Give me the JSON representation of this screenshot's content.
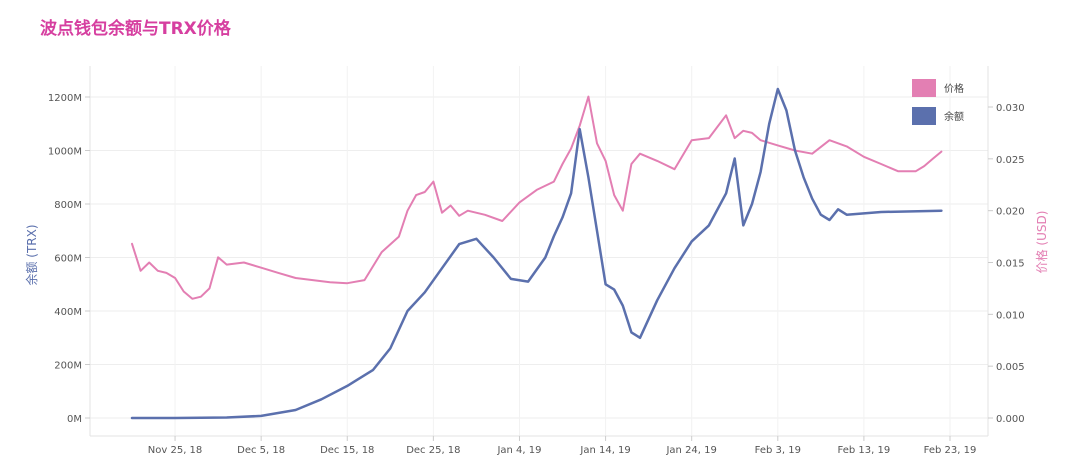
{
  "chart_data": {
    "type": "line",
    "title": "波点钱包余额与TRX价格",
    "ylabel_left": "余额 (TRX)",
    "ylabel_right": "价格 (USD)",
    "x_ticks": [
      "Nov 25, 18",
      "Dec 5, 18",
      "Dec 15, 18",
      "Dec 25, 18",
      "Jan 4, 19",
      "Jan 14, 19",
      "Jan 24, 19",
      "Feb 3, 19",
      "Feb 13, 19",
      "Feb 23, 19"
    ],
    "x_range": [
      "2018-11-20",
      "2019-02-23"
    ],
    "y_left_ticks": [
      "0M",
      "200M",
      "400M",
      "600M",
      "800M",
      "1000M",
      "1200M"
    ],
    "y_left_range": [
      0,
      1300
    ],
    "y_right_ticks": [
      "0.000",
      "0.005",
      "0.010",
      "0.015",
      "0.020",
      "0.025",
      "0.030"
    ],
    "y_right_range": [
      0,
      0.0335
    ],
    "grid": true,
    "legend_position": "top-right",
    "colors": {
      "price": "#e37fb3",
      "balance": "#5b70ad",
      "title": "#d63fa0"
    },
    "series": [
      {
        "name": "价格",
        "axis": "right",
        "x": [
          "2018-11-20",
          "2018-11-21",
          "2018-11-22",
          "2018-11-23",
          "2018-11-24",
          "2018-11-25",
          "2018-11-26",
          "2018-11-27",
          "2018-11-28",
          "2018-11-29",
          "2018-11-30",
          "2018-12-01",
          "2018-12-03",
          "2018-12-05",
          "2018-12-07",
          "2018-12-09",
          "2018-12-11",
          "2018-12-13",
          "2018-12-15",
          "2018-12-17",
          "2018-12-19",
          "2018-12-21",
          "2018-12-22",
          "2018-12-23",
          "2018-12-24",
          "2018-12-25",
          "2018-12-26",
          "2018-12-27",
          "2018-12-28",
          "2018-12-29",
          "2018-12-31",
          "2019-01-02",
          "2019-01-04",
          "2019-01-06",
          "2019-01-08",
          "2019-01-09",
          "2019-01-10",
          "2019-01-11",
          "2019-01-12",
          "2019-01-13",
          "2019-01-14",
          "2019-01-15",
          "2019-01-16",
          "2019-01-17",
          "2019-01-18",
          "2019-01-20",
          "2019-01-22",
          "2019-01-24",
          "2019-01-26",
          "2019-01-28",
          "2019-01-29",
          "2019-01-30",
          "2019-01-31",
          "2019-02-01",
          "2019-02-03",
          "2019-02-05",
          "2019-02-07",
          "2019-02-09",
          "2019-02-11",
          "2019-02-13",
          "2019-02-15",
          "2019-02-17",
          "2019-02-19",
          "2019-02-20",
          "2019-02-21",
          "2019-02-22"
        ],
        "values": [
          0.0168,
          0.0142,
          0.015,
          0.0142,
          0.014,
          0.0135,
          0.0122,
          0.0115,
          0.0117,
          0.0125,
          0.0155,
          0.0148,
          0.015,
          0.0145,
          0.014,
          0.0135,
          0.0133,
          0.0131,
          0.013,
          0.0133,
          0.016,
          0.0175,
          0.02,
          0.0215,
          0.0218,
          0.0228,
          0.0198,
          0.0205,
          0.0195,
          0.02,
          0.0196,
          0.019,
          0.0208,
          0.022,
          0.0228,
          0.0245,
          0.026,
          0.0282,
          0.031,
          0.0265,
          0.0248,
          0.0215,
          0.02,
          0.0245,
          0.0255,
          0.0248,
          0.024,
          0.0268,
          0.027,
          0.0292,
          0.027,
          0.0277,
          0.0275,
          0.0268,
          0.0263,
          0.0258,
          0.0255,
          0.0268,
          0.0262,
          0.0252,
          0.0245,
          0.0238,
          0.0238,
          0.0243,
          0.025,
          0.0257
        ]
      },
      {
        "name": "余额",
        "axis": "left",
        "x": [
          "2018-11-20",
          "2018-11-25",
          "2018-12-01",
          "2018-12-05",
          "2018-12-09",
          "2018-12-12",
          "2018-12-15",
          "2018-12-18",
          "2018-12-20",
          "2018-12-22",
          "2018-12-24",
          "2018-12-26",
          "2018-12-28",
          "2018-12-30",
          "2019-01-01",
          "2019-01-03",
          "2019-01-05",
          "2019-01-07",
          "2019-01-08",
          "2019-01-09",
          "2019-01-10",
          "2019-01-11",
          "2019-01-12",
          "2019-01-13",
          "2019-01-14",
          "2019-01-15",
          "2019-01-16",
          "2019-01-17",
          "2019-01-18",
          "2019-01-20",
          "2019-01-22",
          "2019-01-24",
          "2019-01-26",
          "2019-01-28",
          "2019-01-29",
          "2019-01-30",
          "2019-01-31",
          "2019-02-01",
          "2019-02-02",
          "2019-02-03",
          "2019-02-04",
          "2019-02-05",
          "2019-02-06",
          "2019-02-07",
          "2019-02-08",
          "2019-02-09",
          "2019-02-10",
          "2019-02-11",
          "2019-02-15",
          "2019-02-22"
        ],
        "values": [
          0,
          0,
          2,
          8,
          30,
          70,
          120,
          180,
          260,
          400,
          470,
          560,
          650,
          670,
          600,
          520,
          510,
          600,
          680,
          750,
          840,
          1080,
          900,
          700,
          500,
          480,
          420,
          320,
          300,
          440,
          560,
          660,
          720,
          840,
          970,
          720,
          800,
          920,
          1100,
          1230,
          1150,
          1000,
          900,
          820,
          760,
          740,
          780,
          760,
          770,
          775
        ]
      }
    ]
  }
}
